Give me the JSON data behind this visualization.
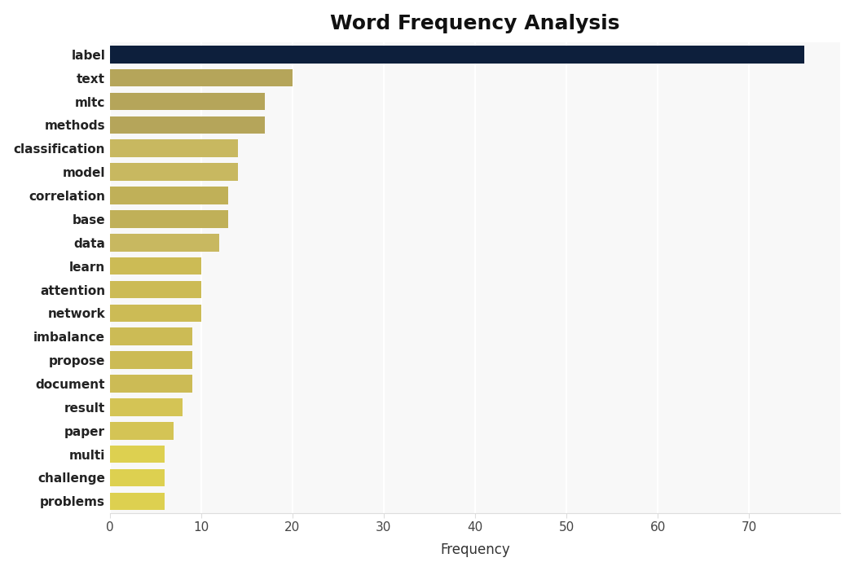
{
  "categories": [
    "label",
    "text",
    "mltc",
    "methods",
    "classification",
    "model",
    "correlation",
    "base",
    "data",
    "learn",
    "attention",
    "network",
    "imbalance",
    "propose",
    "document",
    "result",
    "paper",
    "multi",
    "challenge",
    "problems"
  ],
  "values": [
    76,
    20,
    17,
    17,
    14,
    14,
    13,
    13,
    12,
    10,
    10,
    10,
    9,
    9,
    9,
    8,
    7,
    6,
    6,
    6
  ],
  "bar_colors": [
    "#0d1f3c",
    "#b5a55a",
    "#b5a55a",
    "#b5a55a",
    "#c8b860",
    "#c8b860",
    "#c0b058",
    "#c0b058",
    "#c8b860",
    "#ccbb55",
    "#ccbb55",
    "#ccbb55",
    "#ccbb55",
    "#ccbb55",
    "#ccbb55",
    "#d4c455",
    "#d4c455",
    "#ddd050",
    "#ddd050",
    "#ddd050"
  ],
  "title": "Word Frequency Analysis",
  "xlabel": "Frequency",
  "ylabel": "",
  "xlim": [
    0,
    80
  ],
  "xticks": [
    0,
    10,
    20,
    30,
    40,
    50,
    60,
    70
  ],
  "outer_background": "#ffffff",
  "plot_background": "#f8f8f8",
  "title_fontsize": 18,
  "label_fontsize": 11,
  "bar_height": 0.75
}
